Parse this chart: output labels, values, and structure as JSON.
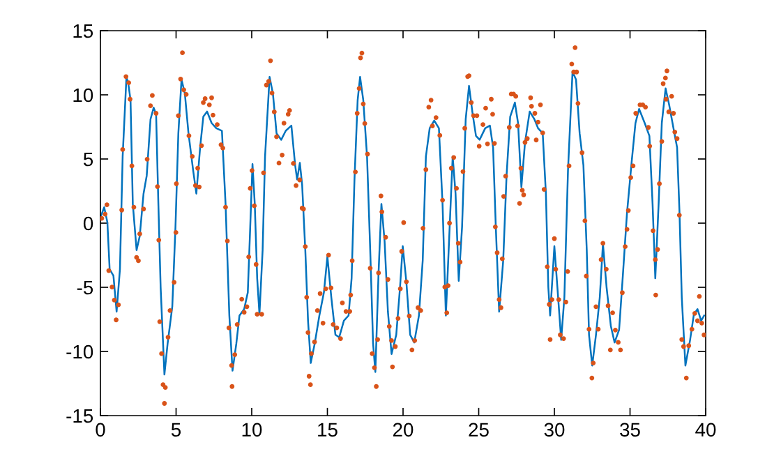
{
  "chart_data": {
    "type": "line",
    "xlim": [
      0,
      40
    ],
    "ylim": [
      -15,
      15
    ],
    "xticks": [
      0,
      5,
      10,
      15,
      20,
      25,
      30,
      35,
      40
    ],
    "yticks": [
      -15,
      -10,
      -5,
      0,
      5,
      10,
      15
    ],
    "grid": false,
    "legend": false,
    "series": [
      {
        "color": "#0072bd",
        "marker": "none",
        "line_style": "solid",
        "x": [
          0,
          0.25,
          0.46,
          0.61,
          0.86,
          1.07,
          1.29,
          1.47,
          1.72,
          1.84,
          1.99,
          2.14,
          2.39,
          2.6,
          2.85,
          3.06,
          3.31,
          3.52,
          3.68,
          3.83,
          3.98,
          4.23,
          4.44,
          4.75,
          4.96,
          5.15,
          5.36,
          5.58,
          5.82,
          6.13,
          6.34,
          6.59,
          6.8,
          7.05,
          7.35,
          7.66,
          8.03,
          8.27,
          8.52,
          8.73,
          8.98,
          9.19,
          9.5,
          9.74,
          9.9,
          10.05,
          10.2,
          10.36,
          10.51,
          10.72,
          10.88,
          11.18,
          11.4,
          11.64,
          11.95,
          12.25,
          12.62,
          12.87,
          13.0,
          13.18,
          13.33,
          13.54,
          13.72,
          13.9,
          14.16,
          14.47,
          14.77,
          15.0,
          15.26,
          15.53,
          15.78,
          16.09,
          16.4,
          16.6,
          16.79,
          17.0,
          17.16,
          17.37,
          17.62,
          17.83,
          18.02,
          18.17,
          18.38,
          18.57,
          18.78,
          19.0,
          19.24,
          19.55,
          19.8,
          19.98,
          20.22,
          20.47,
          20.74,
          21.05,
          21.3,
          21.51,
          21.76,
          22.06,
          22.37,
          22.61,
          22.83,
          23.04,
          23.28,
          23.47,
          23.68,
          23.9,
          24.14,
          24.36,
          24.6,
          24.82,
          25.06,
          25.43,
          25.74,
          25.95,
          26.13,
          26.35,
          26.62,
          26.84,
          27.08,
          27.39,
          27.6,
          27.82,
          28.06,
          28.37,
          28.68,
          28.92,
          29.23,
          29.44,
          29.6,
          29.72,
          30.0,
          30.2,
          30.45,
          30.66,
          30.9,
          31.2,
          31.43,
          31.67,
          31.92,
          32.14,
          32.29,
          32.5,
          32.75,
          33.0,
          33.21,
          33.45,
          33.73,
          33.98,
          34.28,
          34.53,
          34.8,
          35.11,
          35.36,
          35.6,
          35.97,
          36.28,
          36.49,
          36.67,
          36.89,
          37.1,
          37.35,
          37.59,
          37.87,
          38.11,
          38.27,
          38.42,
          38.66,
          38.97,
          39.22,
          39.46,
          39.7,
          39.9
        ],
        "values": [
          0.44,
          1.24,
          0.07,
          -3.6,
          -4.1,
          -6.9,
          -3.6,
          5.2,
          11.4,
          10.9,
          9.6,
          1.5,
          -2.1,
          -1.0,
          2.3,
          3.7,
          8.1,
          9.0,
          8.5,
          1.5,
          -5.0,
          -11.8,
          -9.4,
          -6.5,
          -0.3,
          7.0,
          11.2,
          10.1,
          7.0,
          4.1,
          2.3,
          5.9,
          8.3,
          8.7,
          7.8,
          7.4,
          7.2,
          1.5,
          -7.2,
          -11.5,
          -9.4,
          -7.2,
          -6.7,
          -5.4,
          -0.3,
          4.6,
          1.5,
          -4.3,
          -7.1,
          -2.1,
          5.2,
          11.4,
          10.1,
          7.0,
          6.5,
          7.2,
          7.6,
          4.5,
          3.4,
          4.7,
          3.0,
          -2.1,
          -7.6,
          -10.9,
          -9.4,
          -7.2,
          -5.4,
          -2.6,
          -5.8,
          -8.7,
          -8.9,
          -7.6,
          -7.2,
          -4.3,
          3.4,
          9.6,
          11.4,
          9.6,
          5.2,
          -2.1,
          -9.4,
          -11.6,
          -3.9,
          1.5,
          -1.4,
          -6.9,
          -10.2,
          -8.7,
          -5.0,
          -1.8,
          -4.6,
          -8.7,
          -9.3,
          -7.2,
          -2.9,
          5.2,
          7.4,
          8.0,
          7.4,
          1.5,
          -7.2,
          -1.4,
          5.2,
          2.3,
          -4.5,
          -0.3,
          8.1,
          10.7,
          8.5,
          6.8,
          6.5,
          7.4,
          7.6,
          5.9,
          -0.3,
          -6.9,
          -2.9,
          3.7,
          8.3,
          9.4,
          7.8,
          2.8,
          6.3,
          8.7,
          8.1,
          7.4,
          7.0,
          2.3,
          -5.0,
          -7.2,
          -1.8,
          -5.0,
          -9.1,
          -5.8,
          4.1,
          11.8,
          11.2,
          7.0,
          4.5,
          -2.1,
          -8.7,
          -11.1,
          -8.7,
          -5.8,
          -1.6,
          -5.0,
          -8.0,
          -9.3,
          -8.3,
          -4.0,
          0.8,
          4.8,
          7.8,
          8.9,
          7.8,
          6.8,
          1.5,
          -4.3,
          1.5,
          7.8,
          10.5,
          9.2,
          7.4,
          5.9,
          0.8,
          -5.8,
          -11.1,
          -9.1,
          -7.1,
          -6.7,
          -7.6,
          -7.2
        ]
      },
      {
        "type": "scatter",
        "color": "#d95319",
        "marker": "circle",
        "x": [
          0.09,
          0.31,
          0.43,
          0.55,
          0.77,
          0.92,
          1.04,
          1.19,
          1.41,
          1.47,
          1.69,
          1.87,
          1.96,
          2.08,
          2.21,
          2.39,
          2.51,
          2.6,
          2.85,
          3.09,
          3.31,
          3.43,
          3.68,
          3.77,
          3.86,
          3.92,
          4.04,
          4.14,
          4.23,
          4.29,
          4.47,
          4.6,
          4.87,
          4.99,
          5.02,
          5.15,
          5.3,
          5.42,
          5.51,
          5.67,
          5.85,
          6.07,
          6.28,
          6.43,
          6.53,
          6.68,
          6.8,
          6.92,
          7.2,
          7.35,
          7.44,
          7.72,
          7.97,
          8.09,
          8.27,
          8.39,
          8.49,
          8.67,
          8.7,
          8.88,
          9.04,
          9.34,
          9.5,
          9.68,
          9.8,
          9.9,
          10.02,
          10.17,
          10.29,
          10.36,
          10.66,
          10.78,
          10.97,
          11.12,
          11.24,
          11.34,
          11.49,
          11.64,
          11.8,
          12.01,
          12.13,
          12.41,
          12.5,
          12.75,
          12.93,
          13.17,
          13.33,
          13.42,
          13.54,
          13.63,
          13.72,
          13.94,
          13.79,
          13.88,
          14.15,
          14.34,
          14.52,
          14.71,
          14.89,
          15.08,
          15.24,
          15.38,
          15.62,
          15.87,
          15.99,
          16.23,
          16.48,
          16.54,
          16.64,
          16.85,
          16.97,
          17.1,
          17.19,
          17.28,
          17.37,
          17.47,
          17.65,
          17.83,
          17.96,
          18.11,
          18.23,
          18.32,
          18.38,
          18.54,
          18.6,
          18.85,
          19.0,
          19.09,
          19.24,
          19.3,
          19.49,
          19.67,
          19.82,
          19.91,
          20.04,
          20.22,
          20.41,
          20.59,
          20.77,
          20.99,
          21.17,
          21.32,
          21.51,
          21.7,
          21.85,
          21.94,
          22.18,
          22.43,
          22.61,
          22.76,
          22.89,
          22.98,
          23.07,
          23.19,
          23.35,
          23.53,
          23.65,
          23.77,
          23.96,
          24.08,
          24.27,
          24.36,
          24.51,
          24.66,
          24.88,
          25.03,
          25.28,
          25.46,
          25.58,
          25.83,
          25.92,
          26.04,
          26.1,
          26.22,
          26.35,
          26.47,
          26.56,
          26.65,
          26.78,
          27.02,
          27.15,
          27.3,
          27.45,
          27.57,
          27.79,
          27.88,
          27.97,
          27.7,
          28.06,
          28.21,
          28.43,
          28.49,
          28.71,
          28.8,
          28.92,
          29.08,
          29.23,
          29.32,
          29.53,
          29.66,
          29.72,
          29.84,
          30.0,
          30.09,
          30.29,
          30.39,
          30.61,
          30.76,
          30.88,
          30.97,
          31.15,
          31.28,
          31.37,
          31.47,
          31.56,
          31.83,
          32.02,
          32.11,
          32.29,
          32.48,
          32.57,
          32.75,
          32.9,
          33.09,
          33.21,
          33.43,
          33.55,
          33.7,
          33.85,
          34.03,
          34.22,
          34.37,
          34.49,
          34.68,
          34.8,
          34.89,
          35.05,
          35.2,
          35.38,
          35.66,
          35.84,
          36.02,
          36.21,
          36.3,
          36.52,
          36.67,
          36.7,
          36.82,
          36.94,
          37.1,
          37.19,
          37.34,
          37.44,
          37.38,
          37.56,
          37.75,
          37.87,
          37.96,
          38.11,
          38.26,
          38.42,
          38.54,
          38.72,
          38.88,
          39.09,
          39.28,
          39.46,
          39.58,
          39.74,
          39.89
        ],
        "values": [
          0.37,
          0.7,
          1.43,
          -3.7,
          -4.98,
          -6.0,
          -7.54,
          -6.37,
          1.02,
          5.74,
          11.42,
          10.94,
          9.66,
          4.46,
          1.24,
          -2.67,
          -2.93,
          -0.84,
          1.1,
          4.98,
          9.15,
          9.95,
          8.56,
          2.85,
          -1.32,
          -7.68,
          -10.17,
          -12.59,
          -14.05,
          -12.81,
          -8.89,
          -6.81,
          -4.61,
          -0.73,
          3.07,
          8.38,
          11.23,
          13.28,
          10.39,
          10.03,
          6.81,
          5.2,
          2.93,
          4.28,
          2.82,
          6.04,
          9.4,
          9.7,
          9.22,
          9.77,
          8.42,
          7.68,
          6.11,
          5.85,
          1.24,
          -1.39,
          -8.16,
          -11.09,
          -12.73,
          -10.25,
          -7.9,
          -5.93,
          -6.95,
          -6.51,
          -2.63,
          2.71,
          4.1,
          1.35,
          -3.22,
          -7.1,
          -7.1,
          3.92,
          10.76,
          11.05,
          12.66,
          10.14,
          8.67,
          6.73,
          4.68,
          5.31,
          7.79,
          8.49,
          8.78,
          4.65,
          2.93,
          3.37,
          1.17,
          1.1,
          -1.83,
          -5.78,
          -8.53,
          -10.17,
          -11.93,
          -12.59,
          -9.26,
          -6.81,
          -5.49,
          -7.79,
          -5.12,
          -2.49,
          -5.05,
          -7.9,
          -8.16,
          -9.0,
          -6.22,
          -6.88,
          -6.88,
          -5.6,
          -2.93,
          3.99,
          8.56,
          10.5,
          12.88,
          13.25,
          9.29,
          7.76,
          5.38,
          -3.51,
          -10.17,
          -11.27,
          -12.73,
          -9.07,
          -3.88,
          2.12,
          0.88,
          -1.1,
          -4.39,
          -8.05,
          -9.15,
          -11.2,
          -9.62,
          -7.43,
          -5.12,
          -2.2,
          0.04,
          -4.57,
          -7.24,
          -9.88,
          -9.15,
          -6.59,
          -6.81,
          -0.4,
          4.17,
          9.04,
          9.59,
          7.57,
          8.23,
          6.84,
          1.79,
          -4.98,
          -6.99,
          -4.87,
          0.0,
          4.28,
          5.12,
          2.71,
          -1.57,
          -3.04,
          4.02,
          7.39,
          11.42,
          11.49,
          9.4,
          8.38,
          8.38,
          6.0,
          7.68,
          8.96,
          6.18,
          9.66,
          8.49,
          6.22,
          -0.29,
          -2.31,
          -5.96,
          -6.59,
          -2.78,
          2.09,
          3.66,
          7.46,
          10.06,
          10.06,
          9.88,
          7.57,
          4.28,
          2.56,
          2.2,
          1.54,
          6.29,
          6.59,
          9.77,
          9.11,
          8.56,
          6.48,
          7.87,
          9.22,
          7.03,
          2.63,
          -3.4,
          -6.33,
          -9.07,
          -5.96,
          -1.21,
          -3.59,
          -5.96,
          -8.71,
          -9.0,
          -6.15,
          -3.77,
          4.46,
          12.4,
          11.78,
          13.68,
          11.78,
          9.33,
          5.49,
          0.18,
          -4.13,
          -8.27,
          -12.07,
          -10.9,
          -6.51,
          -8.27,
          -2.85,
          -1.57,
          -3.59,
          -6.44,
          -9.88,
          -6.99,
          -8.34,
          -9.29,
          -9.88,
          -5.42,
          -1.83,
          -0.48,
          0.99,
          3.55,
          4.46,
          8.56,
          9.22,
          9.22,
          9.04,
          7.46,
          6.0,
          -0.59,
          -2.85,
          -5.6,
          -2.05,
          3.07,
          6.37,
          10.87,
          11.31,
          11.86,
          9.66,
          8.67,
          9.88,
          8.56,
          7.1,
          6.59,
          0.62,
          -9.07,
          -9.62,
          -12.07,
          -9.55,
          -8.27,
          -7.03,
          -7.61,
          -5.71,
          -7.79,
          -8.71
        ]
      }
    ]
  }
}
